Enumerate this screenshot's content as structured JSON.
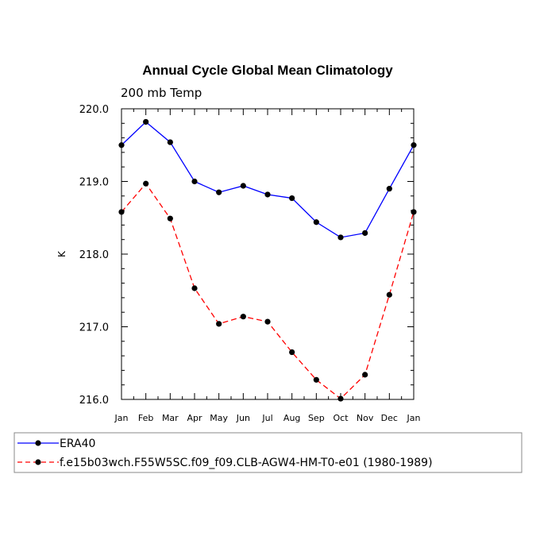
{
  "chart_data": {
    "type": "line",
    "title": "Annual Cycle Global Mean Climatology",
    "subtitle": "200 mb Temp",
    "xlabel": "",
    "ylabel": "K",
    "ylim": [
      216.0,
      220.0
    ],
    "yticks": [
      216.0,
      217.0,
      218.0,
      219.0,
      220.0
    ],
    "ytick_labels": [
      "216.0",
      "217.0",
      "218.0",
      "219.0",
      "220.0"
    ],
    "categories": [
      "Jan",
      "Feb",
      "Mar",
      "Apr",
      "May",
      "Jun",
      "Jul",
      "Aug",
      "Sep",
      "Oct",
      "Nov",
      "Dec",
      "Jan"
    ],
    "series": [
      {
        "name": "ERA40",
        "color": "#0000ff",
        "dashed": false,
        "values": [
          219.5,
          219.82,
          219.54,
          219.0,
          218.85,
          218.94,
          218.82,
          218.77,
          218.44,
          218.23,
          218.29,
          218.9,
          219.5
        ]
      },
      {
        "name": "f.e15b03wch.F55W5SC.f09_f09.CLB-AGW4-HM-T0-e01 (1980-1989)",
        "color": "#ff0000",
        "dashed": true,
        "values": [
          218.58,
          218.97,
          218.49,
          217.53,
          217.04,
          217.14,
          217.07,
          216.65,
          216.27,
          216.01,
          216.34,
          217.44,
          218.58
        ]
      }
    ],
    "legend_position": "bottom-left"
  }
}
